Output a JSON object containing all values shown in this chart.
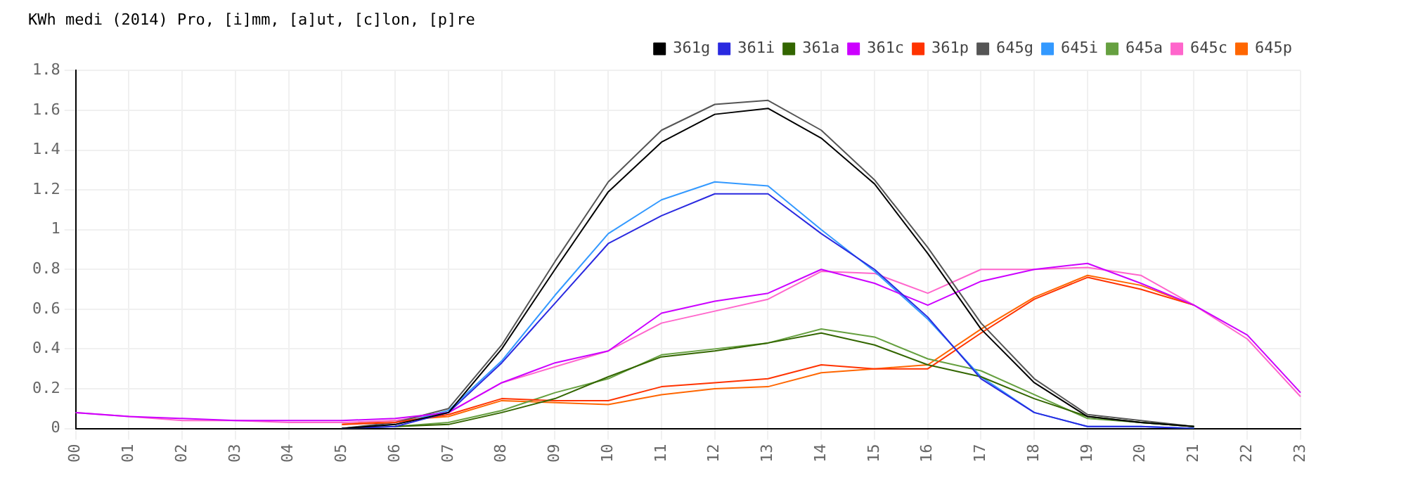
{
  "chart_data": {
    "type": "line",
    "title": "KWh medi (2014) Pro, [i]mm, [a]ut, [c]lon, [p]re",
    "categories": [
      "00",
      "01",
      "02",
      "03",
      "04",
      "05",
      "06",
      "07",
      "08",
      "09",
      "10",
      "11",
      "12",
      "13",
      "14",
      "15",
      "16",
      "17",
      "18",
      "19",
      "20",
      "21",
      "22",
      "23"
    ],
    "series": [
      {
        "name": "361g",
        "color": "#000000",
        "values": [
          null,
          null,
          null,
          null,
          null,
          0,
          0.02,
          0.08,
          0.4,
          0.8,
          1.19,
          1.44,
          1.58,
          1.61,
          1.46,
          1.23,
          0.88,
          0.5,
          0.23,
          0.06,
          0.03,
          0.01,
          null,
          null
        ]
      },
      {
        "name": "361i",
        "color": "#2a2ae0",
        "values": [
          null,
          null,
          null,
          null,
          null,
          0,
          0.01,
          0.08,
          0.33,
          0.63,
          0.93,
          1.07,
          1.18,
          1.18,
          0.98,
          0.8,
          0.56,
          0.25,
          0.08,
          0.01,
          0.01,
          0,
          null,
          null
        ]
      },
      {
        "name": "361a",
        "color": "#336600",
        "values": [
          null,
          null,
          null,
          null,
          null,
          0,
          0.01,
          0.02,
          0.08,
          0.15,
          0.26,
          0.36,
          0.39,
          0.43,
          0.48,
          0.42,
          0.32,
          0.26,
          0.15,
          0.06,
          0.03,
          0.01,
          null,
          null
        ]
      },
      {
        "name": "361c",
        "color": "#cc00ff",
        "values": [
          0.08,
          0.06,
          0.05,
          0.04,
          0.04,
          0.04,
          0.05,
          0.08,
          0.23,
          0.33,
          0.39,
          0.58,
          0.64,
          0.68,
          0.8,
          0.73,
          0.62,
          0.74,
          0.8,
          0.83,
          0.73,
          0.62,
          0.47,
          0.18
        ]
      },
      {
        "name": "361p",
        "color": "#ff3300",
        "values": [
          null,
          null,
          null,
          null,
          null,
          0.02,
          0.03,
          0.07,
          0.15,
          0.14,
          0.14,
          0.21,
          0.23,
          0.25,
          0.32,
          0.3,
          0.3,
          0.48,
          0.65,
          0.76,
          0.7,
          0.62,
          null,
          null
        ]
      },
      {
        "name": "645g",
        "color": "#555555",
        "values": [
          null,
          null,
          null,
          null,
          null,
          0,
          0.03,
          0.1,
          0.42,
          0.84,
          1.24,
          1.5,
          1.63,
          1.65,
          1.5,
          1.25,
          0.91,
          0.53,
          0.25,
          0.07,
          0.04,
          0.01,
          null,
          null
        ]
      },
      {
        "name": "645i",
        "color": "#3399ff",
        "values": [
          null,
          null,
          null,
          null,
          null,
          0,
          0.02,
          0.09,
          0.34,
          0.67,
          0.98,
          1.15,
          1.24,
          1.22,
          1.0,
          0.79,
          0.55,
          0.26,
          0.08,
          0.01,
          0.01,
          0,
          null,
          null
        ]
      },
      {
        "name": "645a",
        "color": "#66a040",
        "values": [
          null,
          null,
          null,
          null,
          null,
          null,
          0.01,
          0.03,
          0.09,
          0.18,
          0.25,
          0.37,
          0.4,
          0.43,
          0.5,
          0.46,
          0.35,
          0.29,
          0.17,
          0.05,
          0.03,
          0.01,
          null,
          null
        ]
      },
      {
        "name": "645c",
        "color": "#ff66cc",
        "values": [
          0.08,
          0.06,
          0.04,
          0.04,
          0.03,
          0.03,
          0.04,
          0.08,
          0.23,
          0.31,
          0.39,
          0.53,
          0.59,
          0.65,
          0.79,
          0.78,
          0.68,
          0.8,
          0.8,
          0.81,
          0.77,
          0.62,
          0.45,
          0.16
        ]
      },
      {
        "name": "645p",
        "color": "#ff6600",
        "values": [
          null,
          null,
          null,
          null,
          null,
          0.02,
          0.04,
          0.06,
          0.14,
          0.13,
          0.12,
          0.17,
          0.2,
          0.21,
          0.28,
          0.3,
          0.32,
          0.5,
          0.66,
          0.77,
          0.72,
          0.62,
          null,
          null
        ]
      }
    ],
    "ylim": [
      0,
      1.8
    ],
    "yticks": [
      0,
      0.2,
      0.4,
      0.6,
      0.8,
      1,
      1.2,
      1.4,
      1.6,
      1.8
    ],
    "grid": true,
    "legend": "top right",
    "marker": "none",
    "line_style": "solid"
  }
}
